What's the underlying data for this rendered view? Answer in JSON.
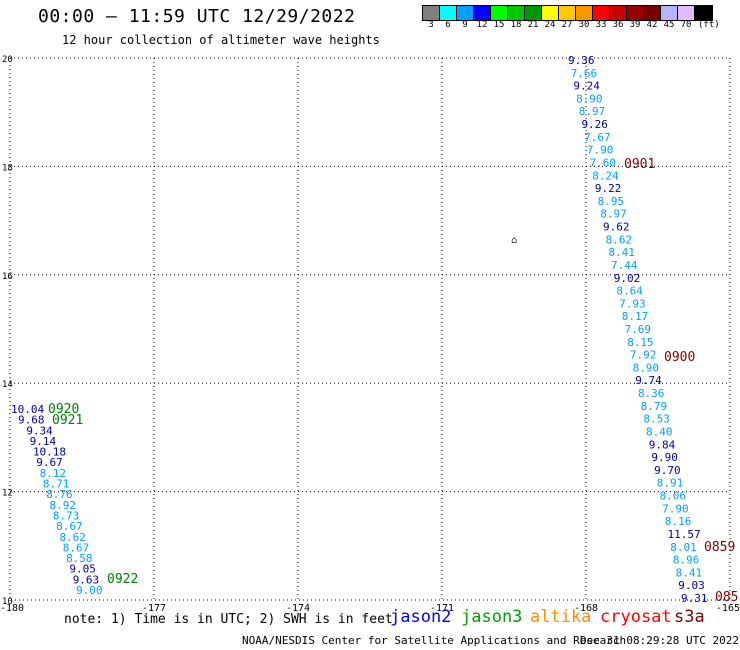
{
  "header": {
    "title": "00:00 – 11:59 UTC 12/29/2022",
    "subtitle": "12 hour collection of altimeter wave heights"
  },
  "colorbar": {
    "colors": [
      "#808080",
      "#00ffff",
      "#00a0ff",
      "#0000ff",
      "#00ff00",
      "#00c800",
      "#009600",
      "#ffff00",
      "#ffc800",
      "#ff9600",
      "#ff0000",
      "#c80000",
      "#960000",
      "#780000",
      "#b4b4ff",
      "#dcbeff",
      "#000000"
    ],
    "labels": [
      "3",
      "6",
      "9",
      "12",
      "15",
      "18",
      "21",
      "24",
      "27",
      "30",
      "33",
      "36",
      "39",
      "42",
      "45",
      "70",
      "(ft)"
    ]
  },
  "map": {
    "lon_range": [
      -180,
      -165
    ],
    "lat_range": [
      10,
      20
    ],
    "x_ticks": [
      "-180",
      "-177",
      "-174",
      "-171",
      "-168",
      "-165"
    ],
    "y_ticks": [
      "20",
      "18",
      "16",
      "14",
      "12",
      "10"
    ],
    "island_glyph": "⌂",
    "colors": {
      "jason2": "#0000a0",
      "jason3": "#00a0ff",
      "cryosat": "#800000",
      "green": "#008000"
    },
    "track_east": [
      {
        "v": "9.36",
        "c": "jason2"
      },
      {
        "v": "7.66",
        "c": "jason3"
      },
      {
        "v": "9.24",
        "c": "jason2"
      },
      {
        "v": "8.90",
        "c": "jason3"
      },
      {
        "v": "8.97",
        "c": "jason3"
      },
      {
        "v": "9.26",
        "c": "jason2"
      },
      {
        "v": "7.67",
        "c": "jason3"
      },
      {
        "v": "7.90",
        "c": "jason3"
      },
      {
        "v": "7.60",
        "c": "jason3"
      },
      {
        "v": "8.24",
        "c": "jason3"
      },
      {
        "v": "9.22",
        "c": "jason2"
      },
      {
        "v": "8.95",
        "c": "jason3"
      },
      {
        "v": "8.97",
        "c": "jason3"
      },
      {
        "v": "9.62",
        "c": "jason2"
      },
      {
        "v": "8.62",
        "c": "jason3"
      },
      {
        "v": "8.41",
        "c": "jason3"
      },
      {
        "v": "7.44",
        "c": "jason3"
      },
      {
        "v": "9.02",
        "c": "jason2"
      },
      {
        "v": "8.64",
        "c": "jason3"
      },
      {
        "v": "7.93",
        "c": "jason3"
      },
      {
        "v": "8.17",
        "c": "jason3"
      },
      {
        "v": "7.69",
        "c": "jason3"
      },
      {
        "v": "8.15",
        "c": "jason3"
      },
      {
        "v": "7.92",
        "c": "jason3"
      },
      {
        "v": "8.90",
        "c": "jason3"
      },
      {
        "v": "9.74",
        "c": "jason2"
      },
      {
        "v": "8.36",
        "c": "jason3"
      },
      {
        "v": "8.79",
        "c": "jason3"
      },
      {
        "v": "8.53",
        "c": "jason3"
      },
      {
        "v": "8.40",
        "c": "jason3"
      },
      {
        "v": "9.84",
        "c": "jason2"
      },
      {
        "v": "9.90",
        "c": "jason2"
      },
      {
        "v": "9.70",
        "c": "jason2"
      },
      {
        "v": "8.91",
        "c": "jason3"
      },
      {
        "v": "8.06",
        "c": "jason3"
      },
      {
        "v": "7.90",
        "c": "jason3"
      },
      {
        "v": "8.16",
        "c": "jason3"
      },
      {
        "v": "11.57",
        "c": "jason2"
      },
      {
        "v": "8.01",
        "c": "jason3"
      },
      {
        "v": "8.96",
        "c": "jason3"
      },
      {
        "v": "8.41",
        "c": "jason3"
      },
      {
        "v": "9.03",
        "c": "jason2"
      },
      {
        "v": "9.31",
        "c": "jason2"
      }
    ],
    "track_west": [
      {
        "v": "10.04",
        "c": "jason2"
      },
      {
        "v": "9.68",
        "c": "jason2"
      },
      {
        "v": "9.34",
        "c": "jason2"
      },
      {
        "v": "9.14",
        "c": "jason2"
      },
      {
        "v": "10.18",
        "c": "jason2"
      },
      {
        "v": "9.67",
        "c": "jason2"
      },
      {
        "v": "8.12",
        "c": "jason3"
      },
      {
        "v": "8.71",
        "c": "jason3"
      },
      {
        "v": "8.76",
        "c": "jason3"
      },
      {
        "v": "8.92",
        "c": "jason3"
      },
      {
        "v": "8.73",
        "c": "jason3"
      },
      {
        "v": "8.67",
        "c": "jason3"
      },
      {
        "v": "8.62",
        "c": "jason3"
      },
      {
        "v": "8.67",
        "c": "jason3"
      },
      {
        "v": "8.58",
        "c": "jason3"
      },
      {
        "v": "9.05",
        "c": "jason2"
      },
      {
        "v": "9.63",
        "c": "jason2"
      },
      {
        "v": "9.00",
        "c": "jason3"
      }
    ],
    "time_labels": [
      {
        "t": "0901",
        "c": "cryosat"
      },
      {
        "t": "0900",
        "c": "cryosat"
      },
      {
        "t": "0859",
        "c": "cryosat"
      },
      {
        "t": "085",
        "c": "cryosat"
      },
      {
        "t": "0920",
        "c": "green"
      },
      {
        "t": "0921",
        "c": "green"
      },
      {
        "t": "0922",
        "c": "green"
      }
    ]
  },
  "note": "note: 1) Time is in UTC; 2) SWH is in feet",
  "legend": [
    {
      "name": "jason2",
      "color": "#0000ff"
    },
    {
      "name": "jason3",
      "color": "#00a000"
    },
    {
      "name": "altika",
      "color": "#ff8c00"
    },
    {
      "name": "cryosat",
      "color": "#ff0000"
    },
    {
      "name": "s3a",
      "color": "#800000"
    }
  ],
  "footer": {
    "credit": "NOAA/NESDIS Center for Satellite Applications and Research",
    "timestamp": "Dec 31 08:29:28 UTC 2022"
  }
}
